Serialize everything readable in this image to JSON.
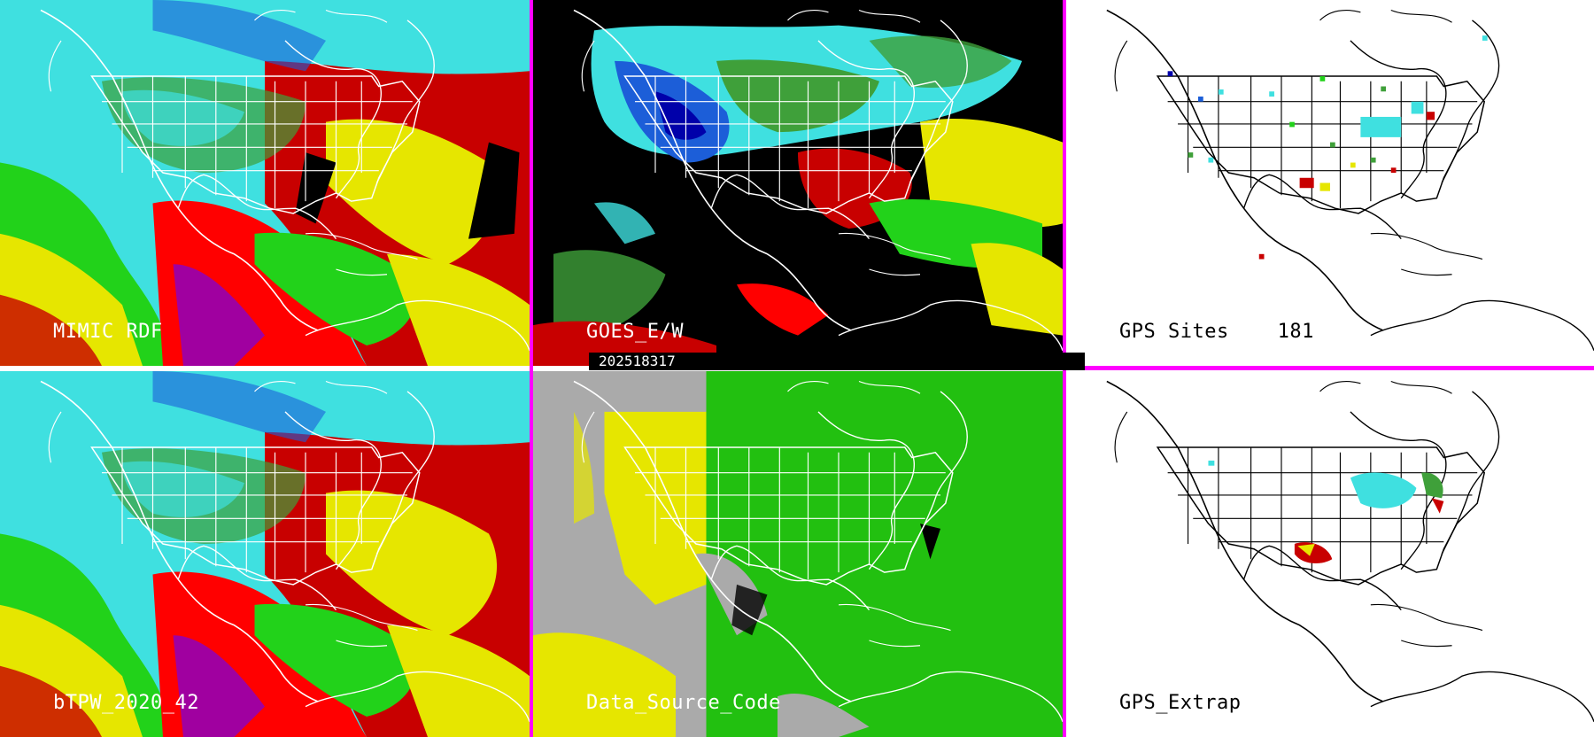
{
  "timestamp": "202518317",
  "panels": [
    {
      "id": "mimic",
      "label": "MIMIC RDF",
      "style": "tpw"
    },
    {
      "id": "goes",
      "label": "GOES_E/W",
      "style": "goes"
    },
    {
      "id": "gps",
      "label": "GPS Sites    181",
      "style": "gps"
    },
    {
      "id": "btpw",
      "label": "bTPW_2020_42",
      "style": "tpw"
    },
    {
      "id": "dsc",
      "label": "Data_Source_Code",
      "style": "dsc"
    },
    {
      "id": "gpsx",
      "label": "GPS_Extrap",
      "style": "gpsx"
    }
  ],
  "colors": {
    "divider": "#ff00ff",
    "ramp": [
      "#0000aa",
      "#1c5ed8",
      "#3fe0e0",
      "#3fa03a",
      "#22d21a",
      "#e6e600",
      "#c80000",
      "#ff0000",
      "#a000a0"
    ]
  }
}
